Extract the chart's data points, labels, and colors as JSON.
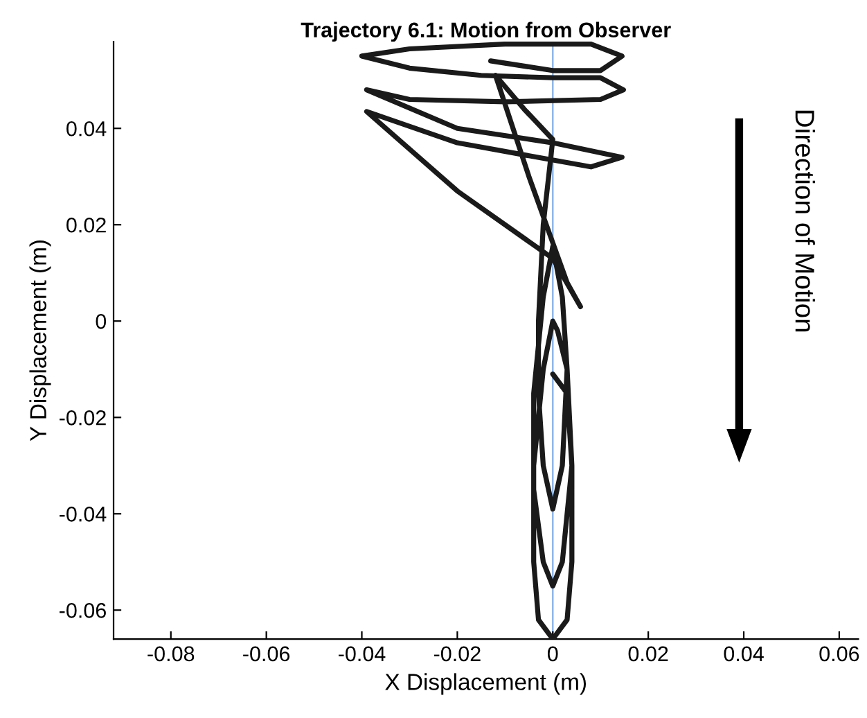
{
  "chart_data": {
    "type": "line",
    "title": "Trajectory 6.1: Motion from Observer",
    "xlabel": "X Displacement (m)",
    "ylabel": "Y Displacement (m)",
    "xlim": [
      -0.092,
      0.064
    ],
    "ylim": [
      -0.066,
      0.058
    ],
    "xticks": [
      -0.08,
      -0.06,
      -0.04,
      -0.02,
      0,
      0.02,
      0.04,
      0.06
    ],
    "yticks": [
      -0.06,
      -0.04,
      -0.02,
      0,
      0.02,
      0.04
    ],
    "grid": false,
    "marker": "none",
    "line_style": "solid",
    "ref_lines": [
      {
        "axis": "x",
        "value": 0,
        "color": "#8fb8e8"
      }
    ],
    "annotations": [
      "Direction of Motion"
    ],
    "series": [
      {
        "color": "#1a1a1a",
        "x": [
          -0.013,
          0.0,
          0.01,
          0.0145,
          0.008,
          -0.01,
          -0.03,
          -0.04,
          -0.03,
          -0.015,
          0.0,
          0.01,
          0.0148,
          0.01,
          -0.01,
          -0.03,
          -0.039,
          -0.02,
          0.0,
          0.0145,
          0.008,
          -0.02,
          -0.039,
          -0.02,
          0.0,
          0.0058,
          0.003,
          -0.005,
          -0.012,
          -0.006,
          0.0,
          -0.002,
          -0.003,
          -0.003,
          -0.002,
          0.0,
          0.002,
          0.003,
          0.002,
          0.0,
          -0.002,
          -0.004,
          -0.004,
          -0.002,
          0.0,
          0.002,
          0.004,
          0.003,
          0.001,
          0.0,
          -0.002,
          -0.004,
          -0.004,
          -0.003,
          0.0,
          0.003,
          0.004,
          0.004,
          0.003,
          0.0
        ],
        "values": [
          0.054,
          0.052,
          0.052,
          0.055,
          0.0575,
          0.0575,
          0.0565,
          0.055,
          0.0525,
          0.051,
          0.0505,
          0.0505,
          0.048,
          0.046,
          0.0455,
          0.046,
          0.048,
          0.04,
          0.037,
          0.034,
          0.032,
          0.037,
          0.0435,
          0.027,
          0.013,
          0.003,
          0.008,
          0.03,
          0.051,
          0.044,
          0.0377,
          0.02,
          0.0,
          -0.015,
          -0.03,
          -0.039,
          -0.03,
          -0.01,
          0.005,
          0.0155,
          0.005,
          -0.015,
          -0.035,
          -0.05,
          -0.055,
          -0.05,
          -0.03,
          -0.01,
          -0.002,
          0.0,
          -0.01,
          -0.03,
          -0.05,
          -0.062,
          -0.066,
          -0.062,
          -0.05,
          -0.03,
          -0.015,
          -0.011
        ]
      }
    ]
  }
}
